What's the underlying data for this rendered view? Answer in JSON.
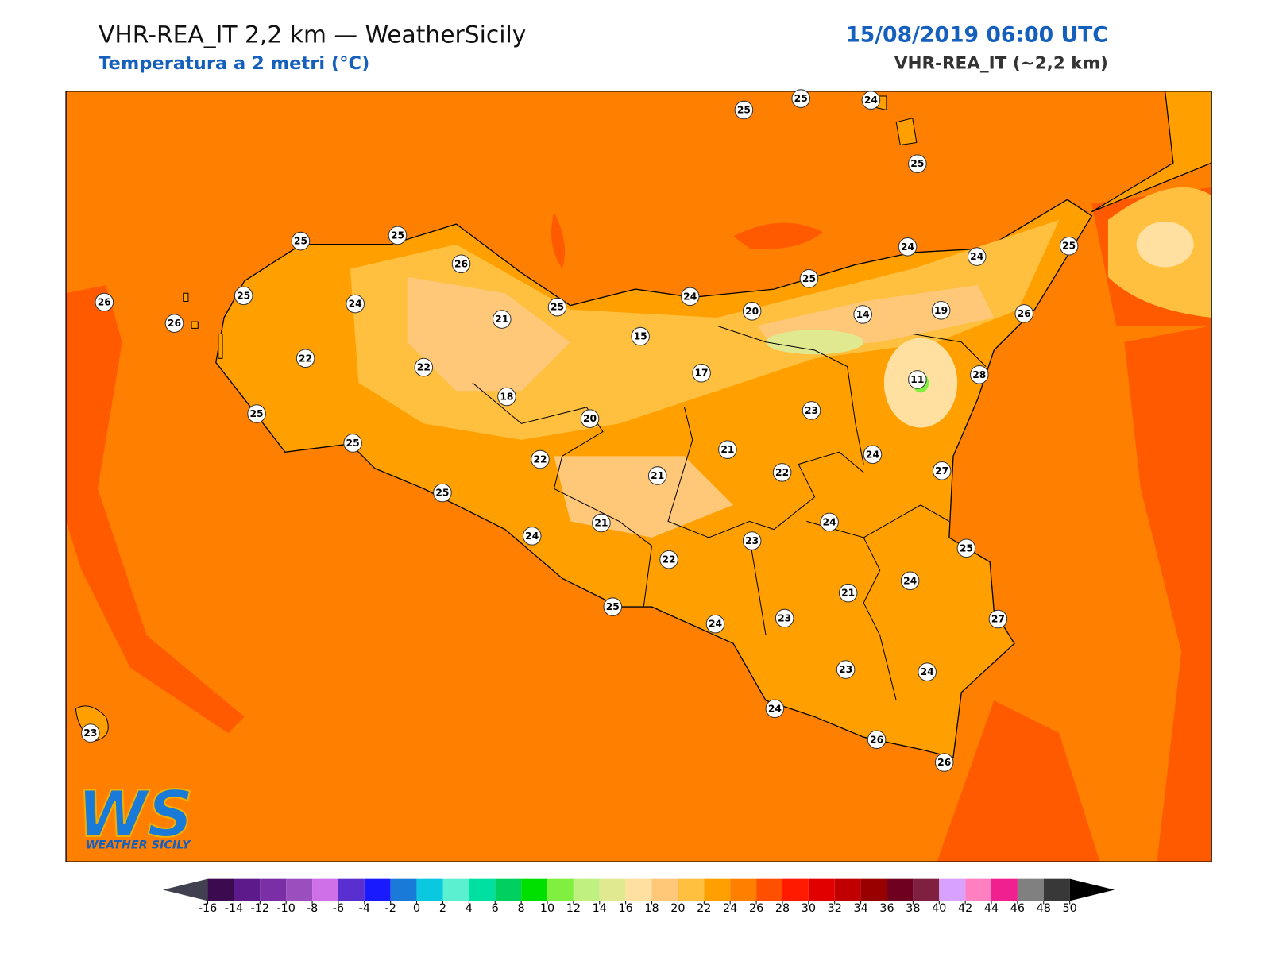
{
  "header": {
    "title": "VHR-REA_IT 2,2 km — WeatherSicily",
    "subtitle": "Temperatura a 2 metri (°C)",
    "datetime": "15/08/2019 06:00 UTC",
    "model": "VHR-REA_IT (~2,2 km)"
  },
  "stations": [
    25,
    25,
    24,
    25,
    25,
    25,
    26,
    26,
    25,
    26,
    24,
    21,
    25,
    24,
    25,
    24,
    24,
    25,
    20,
    14,
    19,
    26,
    15,
    22,
    22,
    17,
    11,
    28,
    18,
    25,
    20,
    23,
    25,
    21,
    24,
    22,
    21,
    22,
    27,
    25,
    24,
    21,
    24,
    23,
    25,
    22,
    24,
    21,
    25,
    23,
    27,
    24,
    23,
    24,
    24,
    23,
    26,
    26
  ],
  "colorbar": {
    "ticks": [
      -16,
      -14,
      -12,
      -10,
      -8,
      -6,
      -4,
      -2,
      0,
      2,
      4,
      6,
      8,
      10,
      12,
      14,
      16,
      18,
      20,
      22,
      24,
      26,
      28,
      30,
      32,
      34,
      36,
      38,
      40,
      42,
      44,
      46,
      48,
      50
    ],
    "colors": [
      "#3b0a4f",
      "#5c1a8a",
      "#7b2fa6",
      "#9b4fbf",
      "#d070e8",
      "#5a2fcf",
      "#1a1aff",
      "#1a7ad8",
      "#0ac8e0",
      "#5af0d0",
      "#00e0a0",
      "#00d060",
      "#00e000",
      "#80f040",
      "#c0f080",
      "#e0e890",
      "#ffe0a0",
      "#ffc878",
      "#ffc040",
      "#ffa000",
      "#ff8000",
      "#ff5000",
      "#ff1a00",
      "#e00000",
      "#c00000",
      "#980000",
      "#700020",
      "#802040",
      "#d8a0ff",
      "#ff80c0",
      "#f02090",
      "#808080",
      "#383838"
    ],
    "under_color": "#404050",
    "over_color": "#000000"
  },
  "logo": {
    "mark": "WS",
    "name": "WEATHER SICILY"
  }
}
